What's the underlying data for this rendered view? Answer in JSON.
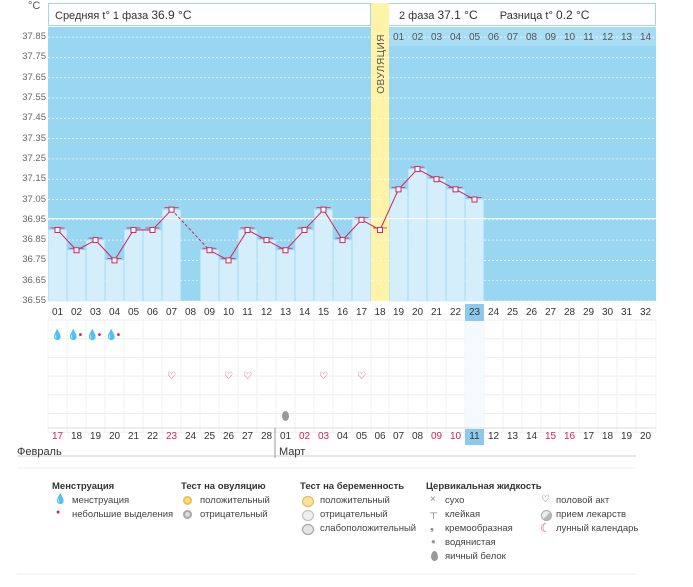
{
  "unit_label": "°C",
  "phase1": {
    "label": "Средняя t° 1 фаза",
    "value": "36.9 °C"
  },
  "phase2": {
    "label": "2 фаза",
    "value": "37.1 °C",
    "diff_label": "Разница t°",
    "diff_value": "0.2 °C"
  },
  "ovulation_label": "ОВУЛЯЦИЯ",
  "phase2_days": [
    "01",
    "02",
    "03",
    "04",
    "05",
    "06",
    "07",
    "08",
    "09",
    "10",
    "11",
    "12",
    "13",
    "14"
  ],
  "y_ticks": [
    "37.85",
    "37.75",
    "37.65",
    "37.55",
    "37.45",
    "37.35",
    "37.25",
    "37.15",
    "37.05",
    "36.95",
    "36.85",
    "36.75",
    "36.65",
    "36.55"
  ],
  "cycle_days": [
    "01",
    "02",
    "03",
    "04",
    "05",
    "06",
    "07",
    "08",
    "09",
    "10",
    "11",
    "12",
    "13",
    "14",
    "15",
    "16",
    "17",
    "18",
    "19",
    "20",
    "21",
    "22",
    "23",
    "24",
    "25",
    "26",
    "27",
    "28",
    "29",
    "30",
    "31",
    "32"
  ],
  "current_day": "23",
  "dates": [
    "17",
    "18",
    "19",
    "20",
    "21",
    "22",
    "23",
    "24",
    "25",
    "26",
    "27",
    "28",
    "01",
    "02",
    "03",
    "04",
    "05",
    "06",
    "07",
    "08",
    "09",
    "10",
    "11",
    "12",
    "13",
    "14",
    "15",
    "16",
    "17",
    "18",
    "19",
    "20"
  ],
  "red_dates": [
    0,
    6,
    13,
    14,
    20,
    21,
    26,
    27
  ],
  "highlight_date_index": 22,
  "month_feb": "Февраль",
  "month_mar": "Март",
  "chart_data": {
    "type": "line",
    "x": [
      1,
      2,
      3,
      4,
      5,
      6,
      7,
      8,
      9,
      10,
      11,
      12,
      13,
      14,
      15,
      16,
      17,
      18,
      19,
      20,
      21,
      22,
      23
    ],
    "y": [
      36.9,
      36.8,
      36.85,
      36.75,
      36.9,
      36.9,
      37.0,
      null,
      36.8,
      36.75,
      36.9,
      36.85,
      36.8,
      36.9,
      37.0,
      36.85,
      36.95,
      36.9,
      37.1,
      37.2,
      37.15,
      37.1,
      37.05
    ],
    "ylim": [
      36.55,
      37.85
    ],
    "ovulation_day": 18,
    "coverline": 37.0
  },
  "symbols": {
    "menstruation": [
      1,
      2,
      3,
      4
    ],
    "menstruation_light": [
      2,
      3,
      4
    ],
    "sex": [
      7,
      10,
      11,
      15,
      17
    ],
    "cervical_egg_white": [
      13
    ]
  },
  "legend": {
    "menstruation": {
      "title": "Менструация",
      "items": [
        "менструация",
        "небольшие выделения"
      ]
    },
    "ovulation_test": {
      "title": "Тест на овуляцию",
      "items": [
        "положительный",
        "отрицательный"
      ]
    },
    "pregnancy_test": {
      "title": "Тест на беременность",
      "items": [
        "положительный",
        "отрицательный",
        "слабоположительный"
      ]
    },
    "cervical": {
      "title": "Цервикальная жидкость",
      "items": [
        "сухо",
        "клейкая",
        "кремообразная",
        "водянистая",
        "яичный белок"
      ]
    },
    "other": {
      "items": [
        "половой акт",
        "прием лекарств",
        "лунный календарь"
      ]
    }
  },
  "colors": {
    "chart_bg": "#99d6f2",
    "bar": "#d4eefb",
    "ovulation": "#fff3a8",
    "line": "#d0245e",
    "accent_red": "#d0245e"
  }
}
